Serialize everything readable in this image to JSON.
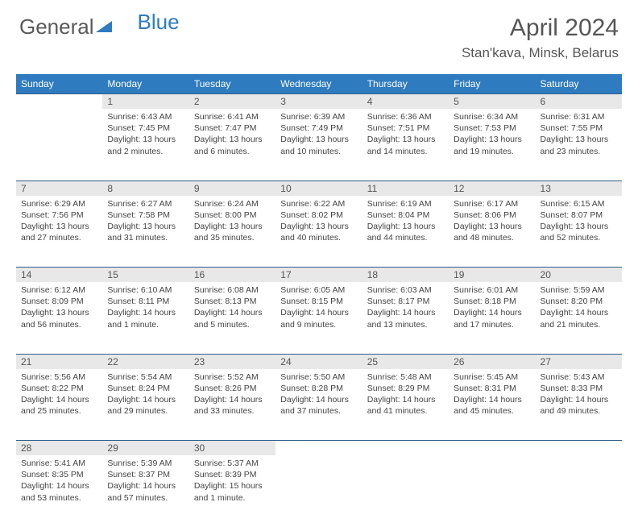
{
  "brand": {
    "part1": "General",
    "part2": "Blue"
  },
  "title": "April 2024",
  "location": "Stan'kava, Minsk, Belarus",
  "colors": {
    "header_bg": "#2f7bbf",
    "daynum_bg": "#e8e8e8",
    "rule": "#2f5d88",
    "text": "#444444"
  },
  "weekdays": [
    "Sunday",
    "Monday",
    "Tuesday",
    "Wednesday",
    "Thursday",
    "Friday",
    "Saturday"
  ],
  "weeks": [
    {
      "nums": [
        "",
        "1",
        "2",
        "3",
        "4",
        "5",
        "6"
      ],
      "cells": [
        {
          "empty": true
        },
        {
          "sunrise": "Sunrise: 6:43 AM",
          "sunset": "Sunset: 7:45 PM",
          "day1": "Daylight: 13 hours",
          "day2": "and 2 minutes."
        },
        {
          "sunrise": "Sunrise: 6:41 AM",
          "sunset": "Sunset: 7:47 PM",
          "day1": "Daylight: 13 hours",
          "day2": "and 6 minutes."
        },
        {
          "sunrise": "Sunrise: 6:39 AM",
          "sunset": "Sunset: 7:49 PM",
          "day1": "Daylight: 13 hours",
          "day2": "and 10 minutes."
        },
        {
          "sunrise": "Sunrise: 6:36 AM",
          "sunset": "Sunset: 7:51 PM",
          "day1": "Daylight: 13 hours",
          "day2": "and 14 minutes."
        },
        {
          "sunrise": "Sunrise: 6:34 AM",
          "sunset": "Sunset: 7:53 PM",
          "day1": "Daylight: 13 hours",
          "day2": "and 19 minutes."
        },
        {
          "sunrise": "Sunrise: 6:31 AM",
          "sunset": "Sunset: 7:55 PM",
          "day1": "Daylight: 13 hours",
          "day2": "and 23 minutes."
        }
      ]
    },
    {
      "nums": [
        "7",
        "8",
        "9",
        "10",
        "11",
        "12",
        "13"
      ],
      "cells": [
        {
          "sunrise": "Sunrise: 6:29 AM",
          "sunset": "Sunset: 7:56 PM",
          "day1": "Daylight: 13 hours",
          "day2": "and 27 minutes."
        },
        {
          "sunrise": "Sunrise: 6:27 AM",
          "sunset": "Sunset: 7:58 PM",
          "day1": "Daylight: 13 hours",
          "day2": "and 31 minutes."
        },
        {
          "sunrise": "Sunrise: 6:24 AM",
          "sunset": "Sunset: 8:00 PM",
          "day1": "Daylight: 13 hours",
          "day2": "and 35 minutes."
        },
        {
          "sunrise": "Sunrise: 6:22 AM",
          "sunset": "Sunset: 8:02 PM",
          "day1": "Daylight: 13 hours",
          "day2": "and 40 minutes."
        },
        {
          "sunrise": "Sunrise: 6:19 AM",
          "sunset": "Sunset: 8:04 PM",
          "day1": "Daylight: 13 hours",
          "day2": "and 44 minutes."
        },
        {
          "sunrise": "Sunrise: 6:17 AM",
          "sunset": "Sunset: 8:06 PM",
          "day1": "Daylight: 13 hours",
          "day2": "and 48 minutes."
        },
        {
          "sunrise": "Sunrise: 6:15 AM",
          "sunset": "Sunset: 8:07 PM",
          "day1": "Daylight: 13 hours",
          "day2": "and 52 minutes."
        }
      ]
    },
    {
      "nums": [
        "14",
        "15",
        "16",
        "17",
        "18",
        "19",
        "20"
      ],
      "cells": [
        {
          "sunrise": "Sunrise: 6:12 AM",
          "sunset": "Sunset: 8:09 PM",
          "day1": "Daylight: 13 hours",
          "day2": "and 56 minutes."
        },
        {
          "sunrise": "Sunrise: 6:10 AM",
          "sunset": "Sunset: 8:11 PM",
          "day1": "Daylight: 14 hours",
          "day2": "and 1 minute."
        },
        {
          "sunrise": "Sunrise: 6:08 AM",
          "sunset": "Sunset: 8:13 PM",
          "day1": "Daylight: 14 hours",
          "day2": "and 5 minutes."
        },
        {
          "sunrise": "Sunrise: 6:05 AM",
          "sunset": "Sunset: 8:15 PM",
          "day1": "Daylight: 14 hours",
          "day2": "and 9 minutes."
        },
        {
          "sunrise": "Sunrise: 6:03 AM",
          "sunset": "Sunset: 8:17 PM",
          "day1": "Daylight: 14 hours",
          "day2": "and 13 minutes."
        },
        {
          "sunrise": "Sunrise: 6:01 AM",
          "sunset": "Sunset: 8:18 PM",
          "day1": "Daylight: 14 hours",
          "day2": "and 17 minutes."
        },
        {
          "sunrise": "Sunrise: 5:59 AM",
          "sunset": "Sunset: 8:20 PM",
          "day1": "Daylight: 14 hours",
          "day2": "and 21 minutes."
        }
      ]
    },
    {
      "nums": [
        "21",
        "22",
        "23",
        "24",
        "25",
        "26",
        "27"
      ],
      "cells": [
        {
          "sunrise": "Sunrise: 5:56 AM",
          "sunset": "Sunset: 8:22 PM",
          "day1": "Daylight: 14 hours",
          "day2": "and 25 minutes."
        },
        {
          "sunrise": "Sunrise: 5:54 AM",
          "sunset": "Sunset: 8:24 PM",
          "day1": "Daylight: 14 hours",
          "day2": "and 29 minutes."
        },
        {
          "sunrise": "Sunrise: 5:52 AM",
          "sunset": "Sunset: 8:26 PM",
          "day1": "Daylight: 14 hours",
          "day2": "and 33 minutes."
        },
        {
          "sunrise": "Sunrise: 5:50 AM",
          "sunset": "Sunset: 8:28 PM",
          "day1": "Daylight: 14 hours",
          "day2": "and 37 minutes."
        },
        {
          "sunrise": "Sunrise: 5:48 AM",
          "sunset": "Sunset: 8:29 PM",
          "day1": "Daylight: 14 hours",
          "day2": "and 41 minutes."
        },
        {
          "sunrise": "Sunrise: 5:45 AM",
          "sunset": "Sunset: 8:31 PM",
          "day1": "Daylight: 14 hours",
          "day2": "and 45 minutes."
        },
        {
          "sunrise": "Sunrise: 5:43 AM",
          "sunset": "Sunset: 8:33 PM",
          "day1": "Daylight: 14 hours",
          "day2": "and 49 minutes."
        }
      ]
    },
    {
      "nums": [
        "28",
        "29",
        "30",
        "",
        "",
        "",
        ""
      ],
      "cells": [
        {
          "sunrise": "Sunrise: 5:41 AM",
          "sunset": "Sunset: 8:35 PM",
          "day1": "Daylight: 14 hours",
          "day2": "and 53 minutes."
        },
        {
          "sunrise": "Sunrise: 5:39 AM",
          "sunset": "Sunset: 8:37 PM",
          "day1": "Daylight: 14 hours",
          "day2": "and 57 minutes."
        },
        {
          "sunrise": "Sunrise: 5:37 AM",
          "sunset": "Sunset: 8:39 PM",
          "day1": "Daylight: 15 hours",
          "day2": "and 1 minute."
        },
        {
          "empty": true
        },
        {
          "empty": true
        },
        {
          "empty": true
        },
        {
          "empty": true
        }
      ]
    }
  ]
}
